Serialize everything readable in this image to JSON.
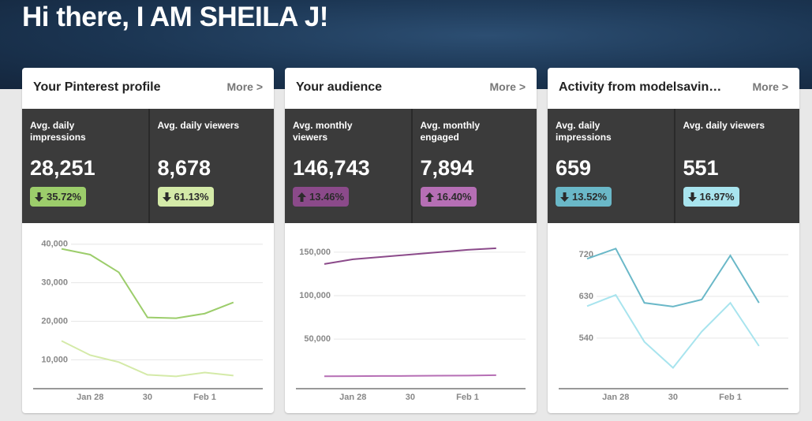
{
  "header": {
    "title": "Hi there, I AM SHEILA J!"
  },
  "cards": [
    {
      "title": "Your Pinterest profile",
      "more": "More >",
      "stats": [
        {
          "label": "Avg. daily impressions",
          "value": "28,251",
          "change": "35.72%",
          "direction": "down",
          "color": "#9ccd6b"
        },
        {
          "label": "Avg. daily viewers",
          "value": "8,678",
          "change": "61.13%",
          "direction": "down",
          "color": "#d4eaa8"
        }
      ],
      "chart": {
        "type": "line",
        "categories": [
          null,
          "Jan 28",
          null,
          "30",
          null,
          "Feb 1",
          null
        ],
        "ylim": [
          2500,
          42000
        ],
        "yticks": [
          {
            "value": 10000,
            "label": "10,000"
          },
          {
            "value": 20000,
            "label": "20,000"
          },
          {
            "value": 30000,
            "label": "30,000"
          },
          {
            "value": 40000,
            "label": "40,000"
          }
        ],
        "grid": true,
        "series": [
          {
            "color": "#9ccd6b",
            "values": [
              38800,
              37300,
              32700,
              21000,
              20800,
              22000,
              24900
            ]
          },
          {
            "color": "#d4eaa8",
            "values": [
              14900,
              11200,
              9400,
              6100,
              5700,
              6700,
              5900
            ]
          }
        ]
      }
    },
    {
      "title": "Your audience",
      "more": "More >",
      "stats": [
        {
          "label": "Avg. monthly viewers",
          "value": "146,743",
          "change": "13.46%",
          "direction": "up",
          "color": "#8b4a8a"
        },
        {
          "label": "Avg. monthly engaged",
          "value": "7,894",
          "change": "16.40%",
          "direction": "up",
          "color": "#b66fb5"
        }
      ],
      "chart": {
        "type": "line",
        "categories": [
          null,
          "Jan 28",
          null,
          "30",
          null,
          "Feb 1",
          null
        ],
        "ylim": [
          -7000,
          168000
        ],
        "yticks": [
          {
            "value": 50000,
            "label": "50,000"
          },
          {
            "value": 100000,
            "label": "100,000"
          },
          {
            "value": 150000,
            "label": "150,000"
          }
        ],
        "grid": true,
        "series": [
          {
            "color": "#8b4a8a",
            "values": [
              136400,
              141800,
              144500,
              147300,
              150000,
              152700,
              154500
            ]
          },
          {
            "color": "#b66fb5",
            "values": [
              7300,
              7400,
              7600,
              7700,
              8000,
              8100,
              8500
            ]
          }
        ]
      }
    },
    {
      "title": "Activity from modelsavin…",
      "more": "More >",
      "stats": [
        {
          "label": "Avg. daily impressions",
          "value": "659",
          "change": "13.52%",
          "direction": "down",
          "color": "#6ab8c8"
        },
        {
          "label": "Avg. daily viewers",
          "value": "551",
          "change": "16.97%",
          "direction": "down",
          "color": "#a8e4ee"
        }
      ],
      "chart": {
        "type": "line",
        "categories": [
          null,
          "Jan 28",
          null,
          "30",
          null,
          "Feb 1",
          null
        ],
        "ylim": [
          431,
          759
        ],
        "yticks": [
          540,
          630,
          720
        ],
        "grid": true,
        "series": [
          {
            "color": "#6ab8c8",
            "values": [
              711,
              733,
              616,
              608,
              623,
              718,
              616
            ]
          },
          {
            "color": "#a8e4ee",
            "values": [
              609,
              633,
              532,
              476,
              554,
              616,
              523
            ]
          }
        ]
      }
    }
  ]
}
